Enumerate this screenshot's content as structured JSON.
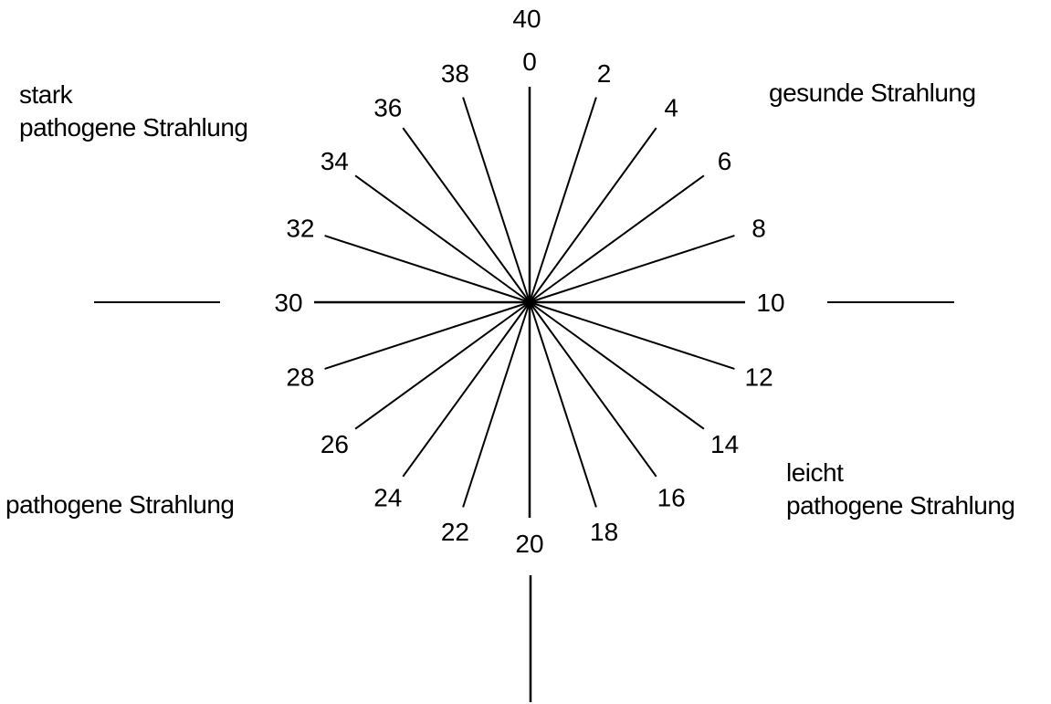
{
  "diagram": {
    "type": "radial-dial-scale",
    "center_label_top": "40",
    "ticks": [
      0,
      2,
      4,
      6,
      8,
      10,
      12,
      14,
      16,
      18,
      20,
      22,
      24,
      26,
      28,
      30,
      32,
      34,
      36,
      38
    ],
    "tick_count_full_circle": 40,
    "quadrants": {
      "top_right": {
        "lines": [
          "gesunde Strahlung"
        ]
      },
      "bottom_right": {
        "lines": [
          "leicht",
          "pathogene Strahlung"
        ]
      },
      "bottom_left": {
        "lines": [
          "pathogene Strahlung"
        ]
      },
      "top_left": {
        "lines": [
          "stark",
          "pathogene Strahlung"
        ]
      }
    },
    "colors": {
      "ink": "#000000",
      "background": "#ffffff"
    }
  }
}
